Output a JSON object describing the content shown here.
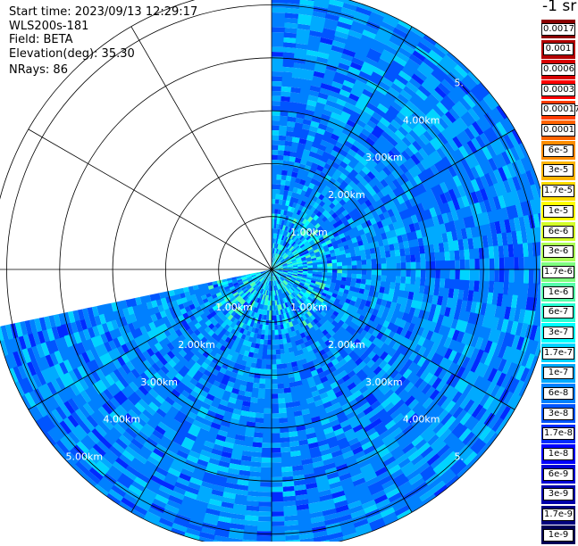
{
  "header": {
    "start_time": "Start time: 2023/09/13 12:29:17",
    "instrument": "WLS200s-181",
    "field": "Field: BETA",
    "elevation": "Elevation(deg): 35.30",
    "nrays": "NRays: 86"
  },
  "scan": {
    "nrays": 86,
    "rings_km": [
      1,
      2,
      3,
      4,
      5
    ],
    "max_range_km": 5.3,
    "data_sector_deg_clockwise_from_north": [
      0,
      258
    ],
    "range_labels": {
      "km1": "1.00km",
      "km2": "2.00km",
      "km3": "3.00km",
      "km4": "4.00km",
      "km5": "5.00km"
    },
    "range_label_directions": [
      "NE",
      "SE",
      "SW"
    ],
    "partial_label_ne5": "5.",
    "partial_label_se5": "5."
  },
  "legend": {
    "unit": "-1 sr",
    "entries": [
      {
        "label": "0.0017",
        "color": "#8b0000"
      },
      {
        "label": "0.001",
        "color": "#b30000"
      },
      {
        "label": "0.0006",
        "color": "#d90000"
      },
      {
        "label": "0.0003",
        "color": "#ff0000"
      },
      {
        "label": "0.00017",
        "color": "#ff3c00"
      },
      {
        "label": "0.0001",
        "color": "#ff6400"
      },
      {
        "label": "6e-5",
        "color": "#ff8c00"
      },
      {
        "label": "3e-5",
        "color": "#ffb400"
      },
      {
        "label": "1.7e-5",
        "color": "#ffdc00"
      },
      {
        "label": "1e-5",
        "color": "#ffff00"
      },
      {
        "label": "6e-6",
        "color": "#d4ff2a"
      },
      {
        "label": "3e-6",
        "color": "#aaff55"
      },
      {
        "label": "1.7e-6",
        "color": "#7fff7f"
      },
      {
        "label": "1e-6",
        "color": "#55ffaa"
      },
      {
        "label": "6e-7",
        "color": "#2affd4"
      },
      {
        "label": "3e-7",
        "color": "#00ffff"
      },
      {
        "label": "1.7e-7",
        "color": "#00d4ff"
      },
      {
        "label": "1e-7",
        "color": "#00aaff"
      },
      {
        "label": "6e-8",
        "color": "#0080ff"
      },
      {
        "label": "3e-8",
        "color": "#0055ff"
      },
      {
        "label": "1.7e-8",
        "color": "#002aff"
      },
      {
        "label": "1e-8",
        "color": "#0000ff"
      },
      {
        "label": "6e-9",
        "color": "#0000d4"
      },
      {
        "label": "3e-9",
        "color": "#0000aa"
      },
      {
        "label": "1.7e-9",
        "color": "#00007f"
      },
      {
        "label": "1e-9",
        "color": "#000055"
      }
    ]
  }
}
